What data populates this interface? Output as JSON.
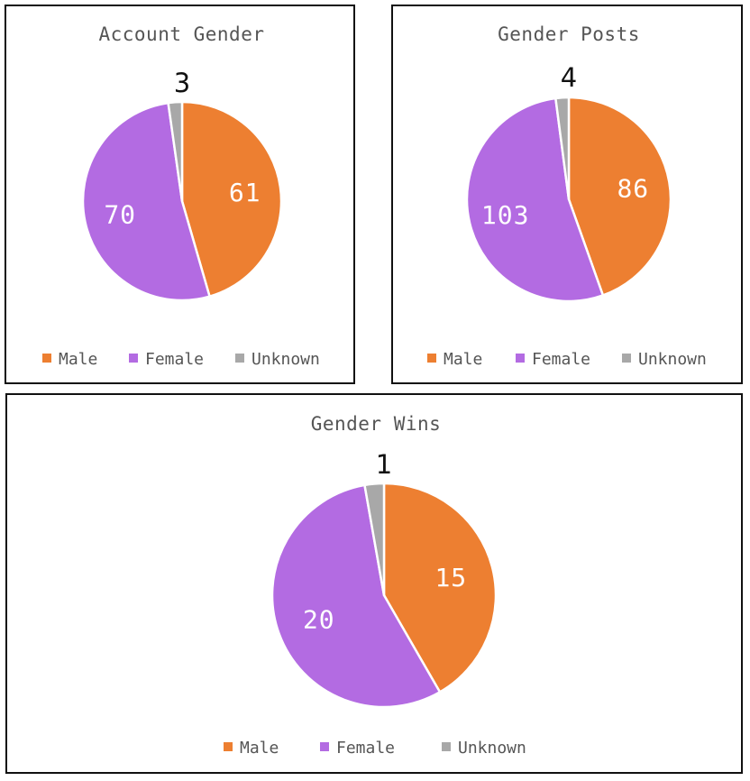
{
  "colors": {
    "male": "#ED7F31",
    "female": "#B36BE2",
    "unknown": "#A8A8A8"
  },
  "chart_data": [
    {
      "type": "pie",
      "title": "Account Gender",
      "categories": [
        "Male",
        "Female",
        "Unknown"
      ],
      "values": [
        61,
        70,
        3
      ],
      "legend": "bottom"
    },
    {
      "type": "pie",
      "title": "Gender Posts",
      "categories": [
        "Male",
        "Female",
        "Unknown"
      ],
      "values": [
        86,
        103,
        4
      ],
      "legend": "bottom"
    },
    {
      "type": "pie",
      "title": "Gender Wins",
      "categories": [
        "Male",
        "Female",
        "Unknown"
      ],
      "values": [
        15,
        20,
        1
      ],
      "legend": "bottom"
    }
  ]
}
